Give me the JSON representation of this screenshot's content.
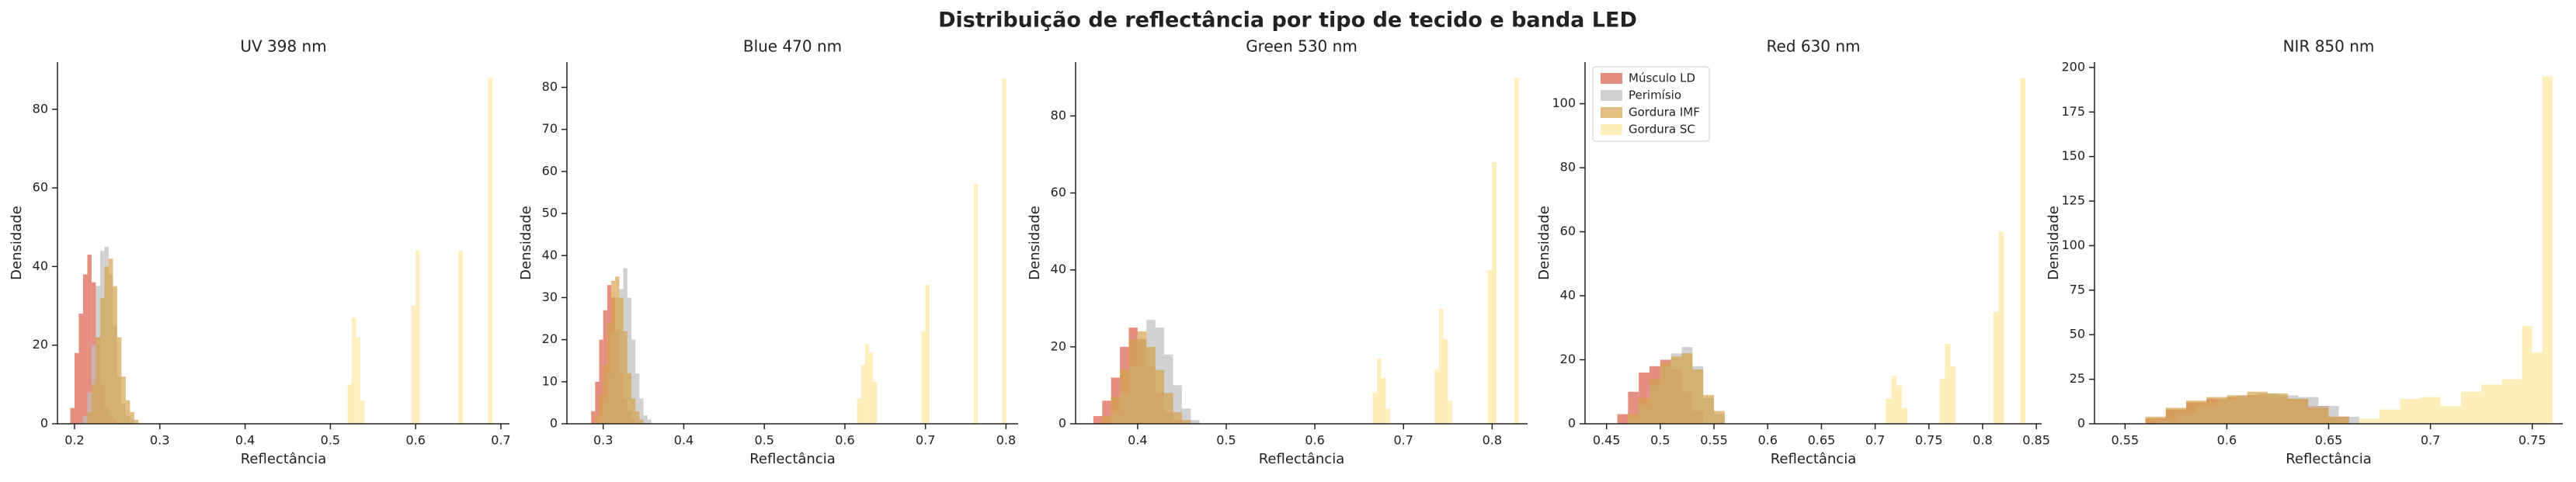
{
  "title": "Distribuição de reflectância por tipo de tecido e banda LED",
  "chart_data": [
    {
      "type": "histogram",
      "title": "UV 398 nm",
      "x_label": "Reflectância",
      "y_label": "Densidade",
      "xlim": [
        0.18,
        0.71
      ],
      "xticks": [
        0.2,
        0.3,
        0.4,
        0.5,
        0.6,
        0.7
      ],
      "ylim": [
        0,
        92
      ],
      "yticks": [
        0,
        20,
        40,
        60,
        80
      ],
      "series": [
        {
          "color": "#d9604b",
          "bins": [
            0.195,
            0.2,
            0.205,
            0.21,
            0.215,
            0.22,
            0.225,
            0.23,
            0.235,
            0.24,
            0.245,
            0.25,
            0.255
          ],
          "values": [
            4,
            18,
            28,
            38,
            43,
            36,
            22,
            10,
            4,
            2,
            1,
            0
          ]
        },
        {
          "color": "#bdbdbd",
          "bins": [
            0.21,
            0.215,
            0.22,
            0.225,
            0.23,
            0.235,
            0.24,
            0.245,
            0.25,
            0.255,
            0.26,
            0.265,
            0.27
          ],
          "values": [
            2,
            8,
            20,
            35,
            44,
            45,
            38,
            25,
            12,
            5,
            2,
            1
          ]
        },
        {
          "color": "#d4a24c",
          "bins": [
            0.215,
            0.22,
            0.225,
            0.23,
            0.235,
            0.24,
            0.245,
            0.25,
            0.255,
            0.26,
            0.265,
            0.27,
            0.275
          ],
          "values": [
            3,
            10,
            22,
            32,
            40,
            42,
            35,
            22,
            12,
            6,
            3,
            1
          ]
        },
        {
          "color": "#fde8a0",
          "bins": [
            0.52,
            0.525,
            0.53,
            0.535,
            0.54,
            0.595,
            0.6,
            0.605,
            0.65,
            0.655,
            0.685,
            0.69
          ],
          "values": [
            10,
            27,
            22,
            6,
            0,
            30,
            44,
            0,
            44,
            0,
            88
          ]
        }
      ]
    },
    {
      "type": "histogram",
      "title": "Blue 470 nm",
      "x_label": "Reflectância",
      "y_label": "Densidade",
      "xlim": [
        0.255,
        0.815
      ],
      "xticks": [
        0.3,
        0.4,
        0.5,
        0.6,
        0.7,
        0.8
      ],
      "ylim": [
        0,
        86
      ],
      "yticks": [
        0,
        10,
        20,
        30,
        40,
        50,
        60,
        70,
        80
      ],
      "series": [
        {
          "color": "#d9604b",
          "bins": [
            0.285,
            0.29,
            0.295,
            0.3,
            0.305,
            0.31,
            0.315,
            0.32,
            0.325,
            0.33,
            0.335,
            0.34,
            0.345
          ],
          "values": [
            3,
            10,
            20,
            27,
            33,
            30,
            22,
            12,
            6,
            3,
            1,
            0
          ]
        },
        {
          "color": "#bdbdbd",
          "bins": [
            0.295,
            0.3,
            0.305,
            0.31,
            0.315,
            0.32,
            0.325,
            0.33,
            0.335,
            0.34,
            0.345,
            0.35,
            0.355,
            0.36
          ],
          "values": [
            2,
            6,
            12,
            22,
            30,
            32,
            37,
            30,
            20,
            12,
            6,
            2,
            1
          ]
        },
        {
          "color": "#d4a24c",
          "bins": [
            0.29,
            0.295,
            0.3,
            0.305,
            0.31,
            0.315,
            0.32,
            0.325,
            0.33,
            0.335,
            0.34,
            0.345,
            0.35
          ],
          "values": [
            2,
            7,
            14,
            24,
            34,
            35,
            30,
            22,
            12,
            6,
            3,
            1
          ]
        },
        {
          "color": "#fde8a0",
          "bins": [
            0.615,
            0.62,
            0.625,
            0.63,
            0.635,
            0.64,
            0.695,
            0.7,
            0.705,
            0.76,
            0.765,
            0.795,
            0.8
          ],
          "values": [
            6,
            14,
            19,
            17,
            10,
            0,
            22,
            33,
            0,
            57,
            0,
            82
          ]
        }
      ]
    },
    {
      "type": "histogram",
      "title": "Green 530 nm",
      "x_label": "Reflectância",
      "y_label": "Densidade",
      "xlim": [
        0.33,
        0.84
      ],
      "xticks": [
        0.4,
        0.5,
        0.6,
        0.7,
        0.8
      ],
      "ylim": [
        0,
        94
      ],
      "yticks": [
        0,
        20,
        40,
        60,
        80
      ],
      "series": [
        {
          "color": "#d9604b",
          "bins": [
            0.35,
            0.36,
            0.37,
            0.38,
            0.39,
            0.4,
            0.41,
            0.42,
            0.43,
            0.44,
            0.45
          ],
          "values": [
            2,
            6,
            12,
            20,
            25,
            22,
            15,
            8,
            3,
            1
          ]
        },
        {
          "color": "#bdbdbd",
          "bins": [
            0.37,
            0.38,
            0.39,
            0.4,
            0.41,
            0.42,
            0.43,
            0.44,
            0.45,
            0.46,
            0.47
          ],
          "values": [
            3,
            8,
            15,
            22,
            27,
            25,
            18,
            10,
            4,
            1
          ]
        },
        {
          "color": "#d4a24c",
          "bins": [
            0.36,
            0.37,
            0.38,
            0.39,
            0.4,
            0.41,
            0.42,
            0.43,
            0.44,
            0.45,
            0.46
          ],
          "values": [
            2,
            7,
            14,
            22,
            24,
            20,
            14,
            8,
            3,
            1
          ]
        },
        {
          "color": "#fde8a0",
          "bins": [
            0.665,
            0.67,
            0.675,
            0.68,
            0.685,
            0.735,
            0.74,
            0.745,
            0.75,
            0.755,
            0.795,
            0.8,
            0.805,
            0.825,
            0.83
          ],
          "values": [
            8,
            17,
            12,
            4,
            0,
            14,
            30,
            22,
            6,
            0,
            40,
            68,
            0,
            90
          ]
        }
      ]
    },
    {
      "type": "histogram",
      "title": "Red 630 nm",
      "x_label": "Reflectância",
      "y_label": "Densidade",
      "xlim": [
        0.43,
        0.855
      ],
      "xticks": [
        0.45,
        0.5,
        0.55,
        0.6,
        0.65,
        0.7,
        0.75,
        0.8,
        0.85
      ],
      "ylim": [
        0,
        113
      ],
      "yticks": [
        0,
        20,
        40,
        60,
        80,
        100
      ],
      "legend": "upper left",
      "series": [
        {
          "name": "Músculo LD",
          "color": "#d9604b",
          "bins": [
            0.46,
            0.47,
            0.48,
            0.49,
            0.5,
            0.51,
            0.52,
            0.53,
            0.54
          ],
          "values": [
            3,
            10,
            16,
            18,
            20,
            17,
            10,
            4
          ]
        },
        {
          "name": "Perimísio",
          "color": "#bdbdbd",
          "bins": [
            0.47,
            0.48,
            0.49,
            0.5,
            0.51,
            0.52,
            0.53,
            0.54,
            0.55,
            0.56
          ],
          "values": [
            2,
            6,
            12,
            18,
            22,
            24,
            18,
            8,
            3
          ]
        },
        {
          "name": "Gordura IMF",
          "color": "#d4a24c",
          "bins": [
            0.47,
            0.48,
            0.49,
            0.5,
            0.51,
            0.52,
            0.53,
            0.54,
            0.55,
            0.56
          ],
          "values": [
            3,
            8,
            14,
            19,
            21,
            22,
            17,
            9,
            4
          ]
        },
        {
          "name": "Gordura SC",
          "color": "#fde8a0",
          "bins": [
            0.71,
            0.715,
            0.72,
            0.725,
            0.73,
            0.76,
            0.765,
            0.77,
            0.775,
            0.81,
            0.815,
            0.82,
            0.835,
            0.84
          ],
          "values": [
            8,
            15,
            12,
            5,
            0,
            14,
            25,
            18,
            0,
            35,
            60,
            0,
            108
          ]
        }
      ]
    },
    {
      "type": "histogram",
      "title": "NIR 850 nm",
      "x_label": "Reflectância",
      "y_label": "Densidade",
      "xlim": [
        0.535,
        0.765
      ],
      "xticks": [
        0.55,
        0.6,
        0.65,
        0.7,
        0.75
      ],
      "ylim": [
        0,
        203
      ],
      "yticks": [
        0,
        25,
        50,
        75,
        100,
        125,
        150,
        175,
        200
      ],
      "series": [
        {
          "color": "#d9604b",
          "bins": [
            0.56,
            0.57,
            0.58,
            0.59,
            0.6,
            0.61,
            0.62,
            0.63,
            0.64,
            0.65,
            0.66
          ],
          "values": [
            3,
            8,
            12,
            14,
            15,
            16,
            15,
            14,
            10,
            4
          ]
        },
        {
          "color": "#bdbdbd",
          "bins": [
            0.565,
            0.575,
            0.585,
            0.595,
            0.605,
            0.615,
            0.625,
            0.635,
            0.645,
            0.655,
            0.665
          ],
          "values": [
            2,
            6,
            10,
            14,
            16,
            17,
            16,
            15,
            10,
            4
          ]
        },
        {
          "color": "#d4a24c",
          "bins": [
            0.56,
            0.57,
            0.58,
            0.59,
            0.6,
            0.61,
            0.62,
            0.63,
            0.64,
            0.65,
            0.66
          ],
          "values": [
            4,
            9,
            13,
            15,
            16,
            18,
            17,
            14,
            9,
            4
          ]
        },
        {
          "color": "#fde8a0",
          "bins": [
            0.665,
            0.675,
            0.685,
            0.695,
            0.705,
            0.715,
            0.725,
            0.735,
            0.745,
            0.75,
            0.755,
            0.76
          ],
          "values": [
            3,
            8,
            14,
            15,
            10,
            18,
            22,
            25,
            55,
            40,
            195
          ]
        }
      ]
    }
  ]
}
